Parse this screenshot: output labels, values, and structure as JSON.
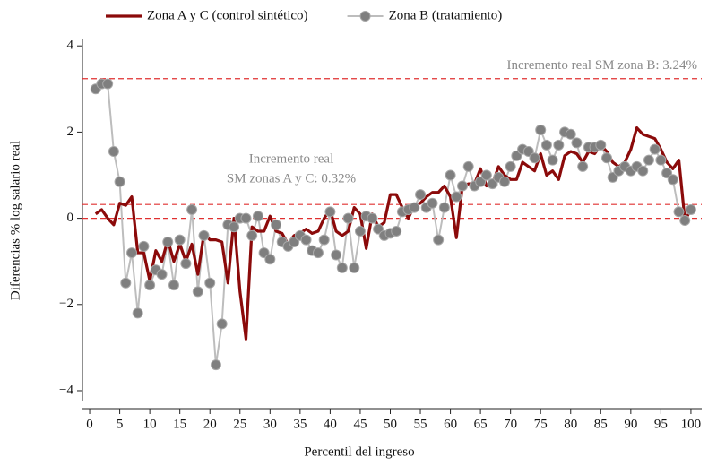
{
  "chart_data": {
    "type": "line",
    "x_label": "Percentil del ingreso",
    "y_label": "Diferencias % log salario real",
    "x": [
      1,
      2,
      3,
      4,
      5,
      6,
      7,
      8,
      9,
      10,
      11,
      12,
      13,
      14,
      15,
      16,
      17,
      18,
      19,
      20,
      21,
      22,
      23,
      24,
      25,
      26,
      27,
      28,
      29,
      30,
      31,
      32,
      33,
      34,
      35,
      36,
      37,
      38,
      39,
      40,
      41,
      42,
      43,
      44,
      45,
      46,
      47,
      48,
      49,
      50,
      51,
      52,
      53,
      54,
      55,
      56,
      57,
      58,
      59,
      60,
      61,
      62,
      63,
      64,
      65,
      66,
      67,
      68,
      69,
      70,
      71,
      72,
      73,
      74,
      75,
      76,
      77,
      78,
      79,
      80,
      81,
      82,
      83,
      84,
      85,
      86,
      87,
      88,
      89,
      90,
      91,
      92,
      93,
      94,
      95,
      96,
      97,
      98,
      99,
      100
    ],
    "series": [
      {
        "name": "Zona A y C (control sintético)",
        "color": "#8b0a0a",
        "markers": false,
        "values": [
          0.1,
          0.2,
          0.0,
          -0.15,
          0.35,
          0.3,
          0.5,
          -0.8,
          -0.8,
          -1.45,
          -0.75,
          -1.0,
          -0.5,
          -1.0,
          -0.6,
          -1.0,
          -0.6,
          -1.3,
          -0.35,
          -0.5,
          -0.5,
          -0.55,
          -1.5,
          0.0,
          -1.7,
          -2.8,
          -0.2,
          -0.3,
          -0.3,
          0.05,
          -0.3,
          -0.35,
          -0.6,
          -0.4,
          -0.35,
          -0.25,
          -0.35,
          -0.3,
          0.0,
          0.2,
          -0.3,
          -0.4,
          -0.3,
          0.25,
          0.1,
          -0.7,
          0.1,
          -0.2,
          -0.1,
          0.55,
          0.55,
          0.25,
          0.0,
          0.3,
          0.35,
          0.5,
          0.6,
          0.6,
          0.75,
          0.5,
          -0.45,
          0.75,
          0.8,
          0.8,
          1.15,
          0.75,
          0.8,
          1.2,
          1.0,
          0.9,
          0.9,
          1.3,
          1.2,
          1.1,
          1.5,
          1.0,
          1.1,
          0.9,
          1.45,
          1.55,
          1.5,
          1.3,
          1.55,
          1.5,
          1.7,
          1.55,
          1.3,
          1.2,
          1.3,
          1.6,
          2.1,
          1.95,
          1.9,
          1.85,
          1.6,
          1.3,
          1.15,
          1.35,
          -0.05,
          0.2
        ]
      },
      {
        "name": "Zona B (tratamiento)",
        "color": "#bdbdbd",
        "markers": true,
        "values": [
          3.0,
          3.12,
          3.12,
          1.55,
          0.85,
          -1.5,
          -0.8,
          -2.2,
          -0.65,
          -1.55,
          -1.2,
          -1.3,
          -0.55,
          -1.55,
          -0.5,
          -1.05,
          0.2,
          -1.7,
          -0.4,
          -1.5,
          -3.4,
          -2.45,
          -0.15,
          -0.2,
          0.0,
          0.0,
          -0.4,
          0.05,
          -0.8,
          -0.95,
          -0.15,
          -0.55,
          -0.65,
          -0.55,
          -0.4,
          -0.5,
          -0.75,
          -0.8,
          -0.5,
          0.15,
          -0.85,
          -1.15,
          0.0,
          -1.15,
          -0.3,
          0.05,
          0.0,
          -0.25,
          -0.4,
          -0.35,
          -0.3,
          0.15,
          0.2,
          0.25,
          0.55,
          0.25,
          0.35,
          -0.5,
          0.25,
          1.0,
          0.5,
          0.75,
          1.2,
          0.75,
          0.85,
          1.0,
          0.8,
          0.95,
          0.85,
          1.2,
          1.45,
          1.6,
          1.55,
          1.4,
          2.05,
          1.7,
          1.35,
          1.7,
          2.0,
          1.95,
          1.75,
          1.2,
          1.65,
          1.65,
          1.7,
          1.4,
          0.95,
          1.1,
          1.2,
          1.1,
          1.2,
          1.1,
          1.35,
          1.6,
          1.35,
          1.05,
          0.9,
          0.15,
          -0.05,
          0.2
        ]
      }
    ],
    "xlim": [
      -1.2,
      101.8
    ],
    "ylim": [
      -4.25,
      4.15
    ],
    "xticks": [
      0,
      5,
      10,
      15,
      20,
      25,
      30,
      35,
      40,
      45,
      50,
      55,
      60,
      65,
      70,
      75,
      80,
      85,
      90,
      95,
      100
    ],
    "yticks": [
      {
        "value": -4,
        "label": "−4"
      },
      {
        "value": -2,
        "label": "−2"
      },
      0,
      2,
      4
    ],
    "reference_lines": [
      3.24,
      0.32,
      0
    ],
    "reference_color": "#e03030",
    "annotations": [
      "Incremento real SM zona B: 3.24%",
      "Incremento real",
      "SM zonas A y C: 0.32%"
    ],
    "marker_color": "#7f7f7f",
    "legend": "top"
  }
}
